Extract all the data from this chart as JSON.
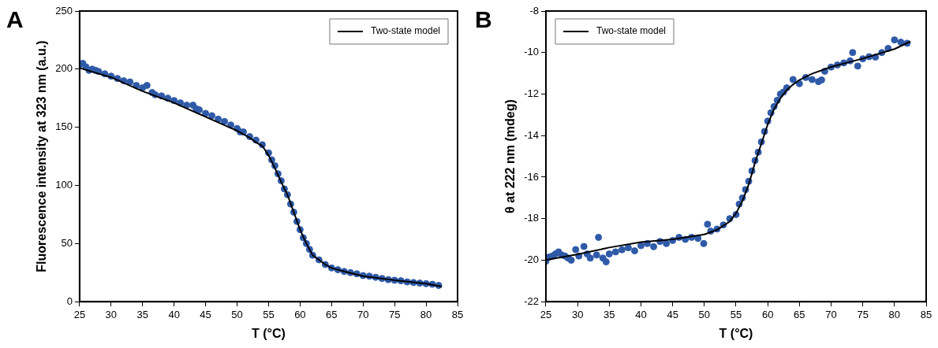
{
  "chart_data": [
    {
      "type": "scatter",
      "xlabel": "T (°C)",
      "ylabel": "Fluorescence intensity at 323 nm (a.u.)",
      "annotations": [
        "A"
      ],
      "xlim": [
        25,
        85
      ],
      "xticks": [
        25,
        30,
        35,
        40,
        45,
        50,
        55,
        60,
        65,
        70,
        75,
        80,
        85
      ],
      "ylim": [
        0,
        250
      ],
      "yticks": [
        0,
        50,
        100,
        150,
        200,
        250
      ],
      "grid": false,
      "legend": "top right",
      "series": [
        {
          "type": "scatter",
          "marker": "circle",
          "color": "#2f5aa8",
          "x": [
            25,
            25.5,
            26,
            26.5,
            27,
            27.5,
            28,
            29,
            30,
            31,
            32,
            33,
            34,
            35,
            35.7,
            36.5,
            37,
            38,
            39,
            40,
            41,
            42,
            43,
            43.5,
            44,
            45,
            46,
            47,
            48,
            49,
            50,
            50.5,
            51,
            52,
            53,
            54,
            55,
            55.5,
            56,
            56.5,
            57,
            57.5,
            58,
            58.5,
            59,
            59.5,
            60,
            60.5,
            61,
            61.5,
            62,
            63,
            64,
            65,
            66,
            67,
            68,
            69,
            70,
            71,
            72,
            73,
            74,
            75,
            76,
            77,
            78,
            79,
            80,
            81,
            82
          ],
          "values": [
            204,
            205,
            202,
            199,
            200,
            199,
            198,
            196,
            194,
            192,
            190,
            189,
            186,
            184,
            186,
            180,
            178,
            177,
            175,
            173,
            171,
            169,
            169,
            166,
            165,
            162,
            160,
            157,
            155,
            152,
            149,
            146,
            146,
            142,
            139,
            135,
            128,
            122,
            117,
            110,
            104,
            97,
            92,
            84,
            77,
            69,
            62,
            55,
            50,
            45,
            40,
            36,
            32,
            29,
            27.5,
            26,
            25,
            24,
            22.5,
            22,
            21,
            20,
            19,
            18.5,
            18,
            17,
            16.5,
            16,
            15.5,
            15,
            14
          ]
        },
        {
          "type": "line",
          "name": "Two-state model",
          "marker": "none",
          "line_style": "solid",
          "color": "#000000",
          "x": [
            25,
            30,
            35,
            40,
            45,
            50,
            52,
            53,
            54,
            55,
            56,
            57,
            58,
            59,
            60,
            61,
            62,
            63,
            64,
            65,
            67,
            70,
            75,
            80,
            82.5
          ],
          "values": [
            201,
            193,
            181,
            171,
            159,
            147,
            141,
            137,
            134,
            126,
            115,
            103,
            92,
            77,
            62,
            50,
            40,
            36,
            32,
            29,
            26,
            22,
            18.5,
            15.5,
            13
          ]
        }
      ]
    },
    {
      "type": "scatter",
      "xlabel": "T (°C)",
      "ylabel": "θ at 222 nm (mdeg)",
      "annotations": [
        "B"
      ],
      "xlim": [
        25,
        85
      ],
      "xticks": [
        25,
        30,
        35,
        40,
        45,
        50,
        55,
        60,
        65,
        70,
        75,
        80,
        85
      ],
      "ylim": [
        -22,
        -8
      ],
      "yticks": [
        -22,
        -20,
        -18,
        -16,
        -14,
        -12,
        -10,
        -8
      ],
      "grid": false,
      "legend": "top left",
      "series": [
        {
          "type": "scatter",
          "marker": "circle",
          "color": "#2f5aa8",
          "x": [
            25,
            25.5,
            26,
            26.5,
            27,
            27.5,
            28,
            28.5,
            29,
            29.7,
            30.2,
            31,
            31.5,
            32,
            33,
            33.3,
            34,
            34.5,
            35,
            36,
            37,
            38,
            39,
            40,
            41,
            42,
            43,
            44,
            45,
            46,
            47,
            48,
            49,
            49.9,
            50.5,
            51,
            52,
            53,
            54,
            55,
            55.5,
            56,
            56.5,
            57,
            57.5,
            58,
            58.5,
            59,
            59.5,
            60,
            60.5,
            61,
            61.5,
            62,
            62.5,
            63,
            64,
            65,
            66,
            67,
            68,
            68.5,
            69,
            70,
            71,
            72,
            73,
            73.4,
            74.2,
            75,
            76,
            77,
            78,
            79,
            80,
            81,
            82
          ],
          "values": [
            -20.05,
            -19.85,
            -19.8,
            -19.7,
            -19.6,
            -19.75,
            -19.8,
            -19.9,
            -20,
            -19.49,
            -19.8,
            -19.34,
            -19.7,
            -19.9,
            -19.75,
            -18.9,
            -19.9,
            -20.08,
            -19.7,
            -19.6,
            -19.5,
            -19.4,
            -19.55,
            -19.3,
            -19.2,
            -19.35,
            -19.1,
            -19.2,
            -19.05,
            -18.9,
            -19,
            -18.9,
            -18.95,
            -19.2,
            -18.27,
            -18.6,
            -18.5,
            -18.3,
            -18.0,
            -17.8,
            -17.3,
            -17.0,
            -16.6,
            -16.2,
            -15.7,
            -15.2,
            -14.8,
            -14.3,
            -13.8,
            -13.3,
            -12.9,
            -12.6,
            -12.3,
            -12.0,
            -11.9,
            -11.7,
            -11.3,
            -11.5,
            -11.2,
            -11.3,
            -11.4,
            -11.32,
            -10.9,
            -10.7,
            -10.6,
            -10.5,
            -10.4,
            -10.0,
            -10.65,
            -10.3,
            -10.2,
            -10.22,
            -10.0,
            -9.8,
            -9.39,
            -9.5,
            -9.55
          ]
        },
        {
          "type": "line",
          "name": "Two-state model",
          "marker": "none",
          "line_style": "solid",
          "color": "#000000",
          "x": [
            25,
            30,
            35,
            40,
            45,
            50,
            52,
            54,
            55,
            56,
            57,
            58,
            59,
            60,
            61,
            62,
            63,
            64,
            65,
            67,
            70,
            75,
            80,
            82.5
          ],
          "values": [
            -19.99,
            -19.72,
            -19.39,
            -19.13,
            -19.0,
            -18.76,
            -18.54,
            -18.14,
            -17.74,
            -17.15,
            -16.36,
            -15.3,
            -14.38,
            -13.46,
            -12.73,
            -12.2,
            -11.81,
            -11.54,
            -11.32,
            -11.02,
            -10.69,
            -10.29,
            -9.83,
            -9.47
          ]
        }
      ]
    }
  ]
}
